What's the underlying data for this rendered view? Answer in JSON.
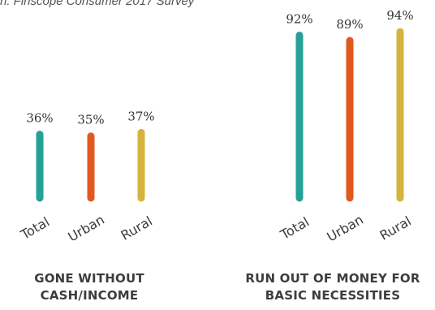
{
  "source_note": "n: Finscope Consumer 2017 Survey",
  "chart_data": [
    {
      "type": "bar",
      "title": "GONE WITHOUT CASH/INCOME",
      "title_lines": [
        "GONE WITHOUT",
        "CASH/INCOME"
      ],
      "categories": [
        "Total",
        "Urban",
        "Rural"
      ],
      "values": [
        36,
        35,
        37
      ],
      "value_labels": [
        "36%",
        "35%",
        "37%"
      ],
      "colors": [
        "#26a196",
        "#e05a1f",
        "#d4b43c"
      ],
      "ylim": [
        0,
        100
      ],
      "grid": false,
      "legend": "none"
    },
    {
      "type": "bar",
      "title": "RUN OUT OF MONEY FOR BASIC NECESSITIES",
      "title_lines": [
        "RUN OUT OF MONEY FOR",
        "BASIC NECESSITIES"
      ],
      "categories": [
        "Total",
        "Urban",
        "Rural"
      ],
      "values": [
        92,
        89,
        94
      ],
      "value_labels": [
        "92%",
        "89%",
        "94%"
      ],
      "colors": [
        "#26a196",
        "#e05a1f",
        "#d4b43c"
      ],
      "ylim": [
        0,
        100
      ],
      "grid": false,
      "legend": "none"
    }
  ]
}
